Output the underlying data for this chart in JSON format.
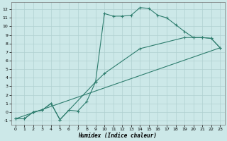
{
  "title": "",
  "xlabel": "Humidex (Indice chaleur)",
  "bg_color": "#cce8e8",
  "grid_color": "#b0d0d0",
  "line_color": "#2e7d6e",
  "xlim": [
    -0.5,
    23.5
  ],
  "ylim": [
    -1.5,
    12.8
  ],
  "xticks": [
    0,
    1,
    2,
    3,
    4,
    5,
    6,
    7,
    8,
    9,
    10,
    11,
    12,
    13,
    14,
    15,
    16,
    17,
    18,
    19,
    20,
    21,
    22,
    23
  ],
  "yticks": [
    -1,
    0,
    1,
    2,
    3,
    4,
    5,
    6,
    7,
    8,
    9,
    10,
    11,
    12
  ],
  "line1_x": [
    0,
    1,
    2,
    3,
    4,
    5,
    6,
    7,
    8,
    9,
    10,
    11,
    12,
    13,
    14,
    15,
    16,
    17,
    18,
    19,
    20,
    21,
    22,
    23
  ],
  "line1_y": [
    -0.8,
    -0.8,
    0.0,
    0.2,
    1.0,
    -0.9,
    0.2,
    0.1,
    1.2,
    3.5,
    11.5,
    11.2,
    11.2,
    11.3,
    12.2,
    12.1,
    11.3,
    11.0,
    10.2,
    9.4,
    8.7,
    8.7,
    8.6,
    7.5
  ],
  "line2_x": [
    0,
    1,
    2,
    3,
    4,
    5,
    9,
    10,
    14,
    19,
    20,
    21,
    22,
    23
  ],
  "line2_y": [
    -0.8,
    -0.8,
    0.0,
    0.2,
    1.0,
    -0.9,
    3.5,
    4.5,
    7.4,
    8.7,
    8.7,
    8.7,
    8.6,
    7.5
  ],
  "line3_x": [
    0,
    23
  ],
  "line3_y": [
    -0.8,
    7.5
  ]
}
